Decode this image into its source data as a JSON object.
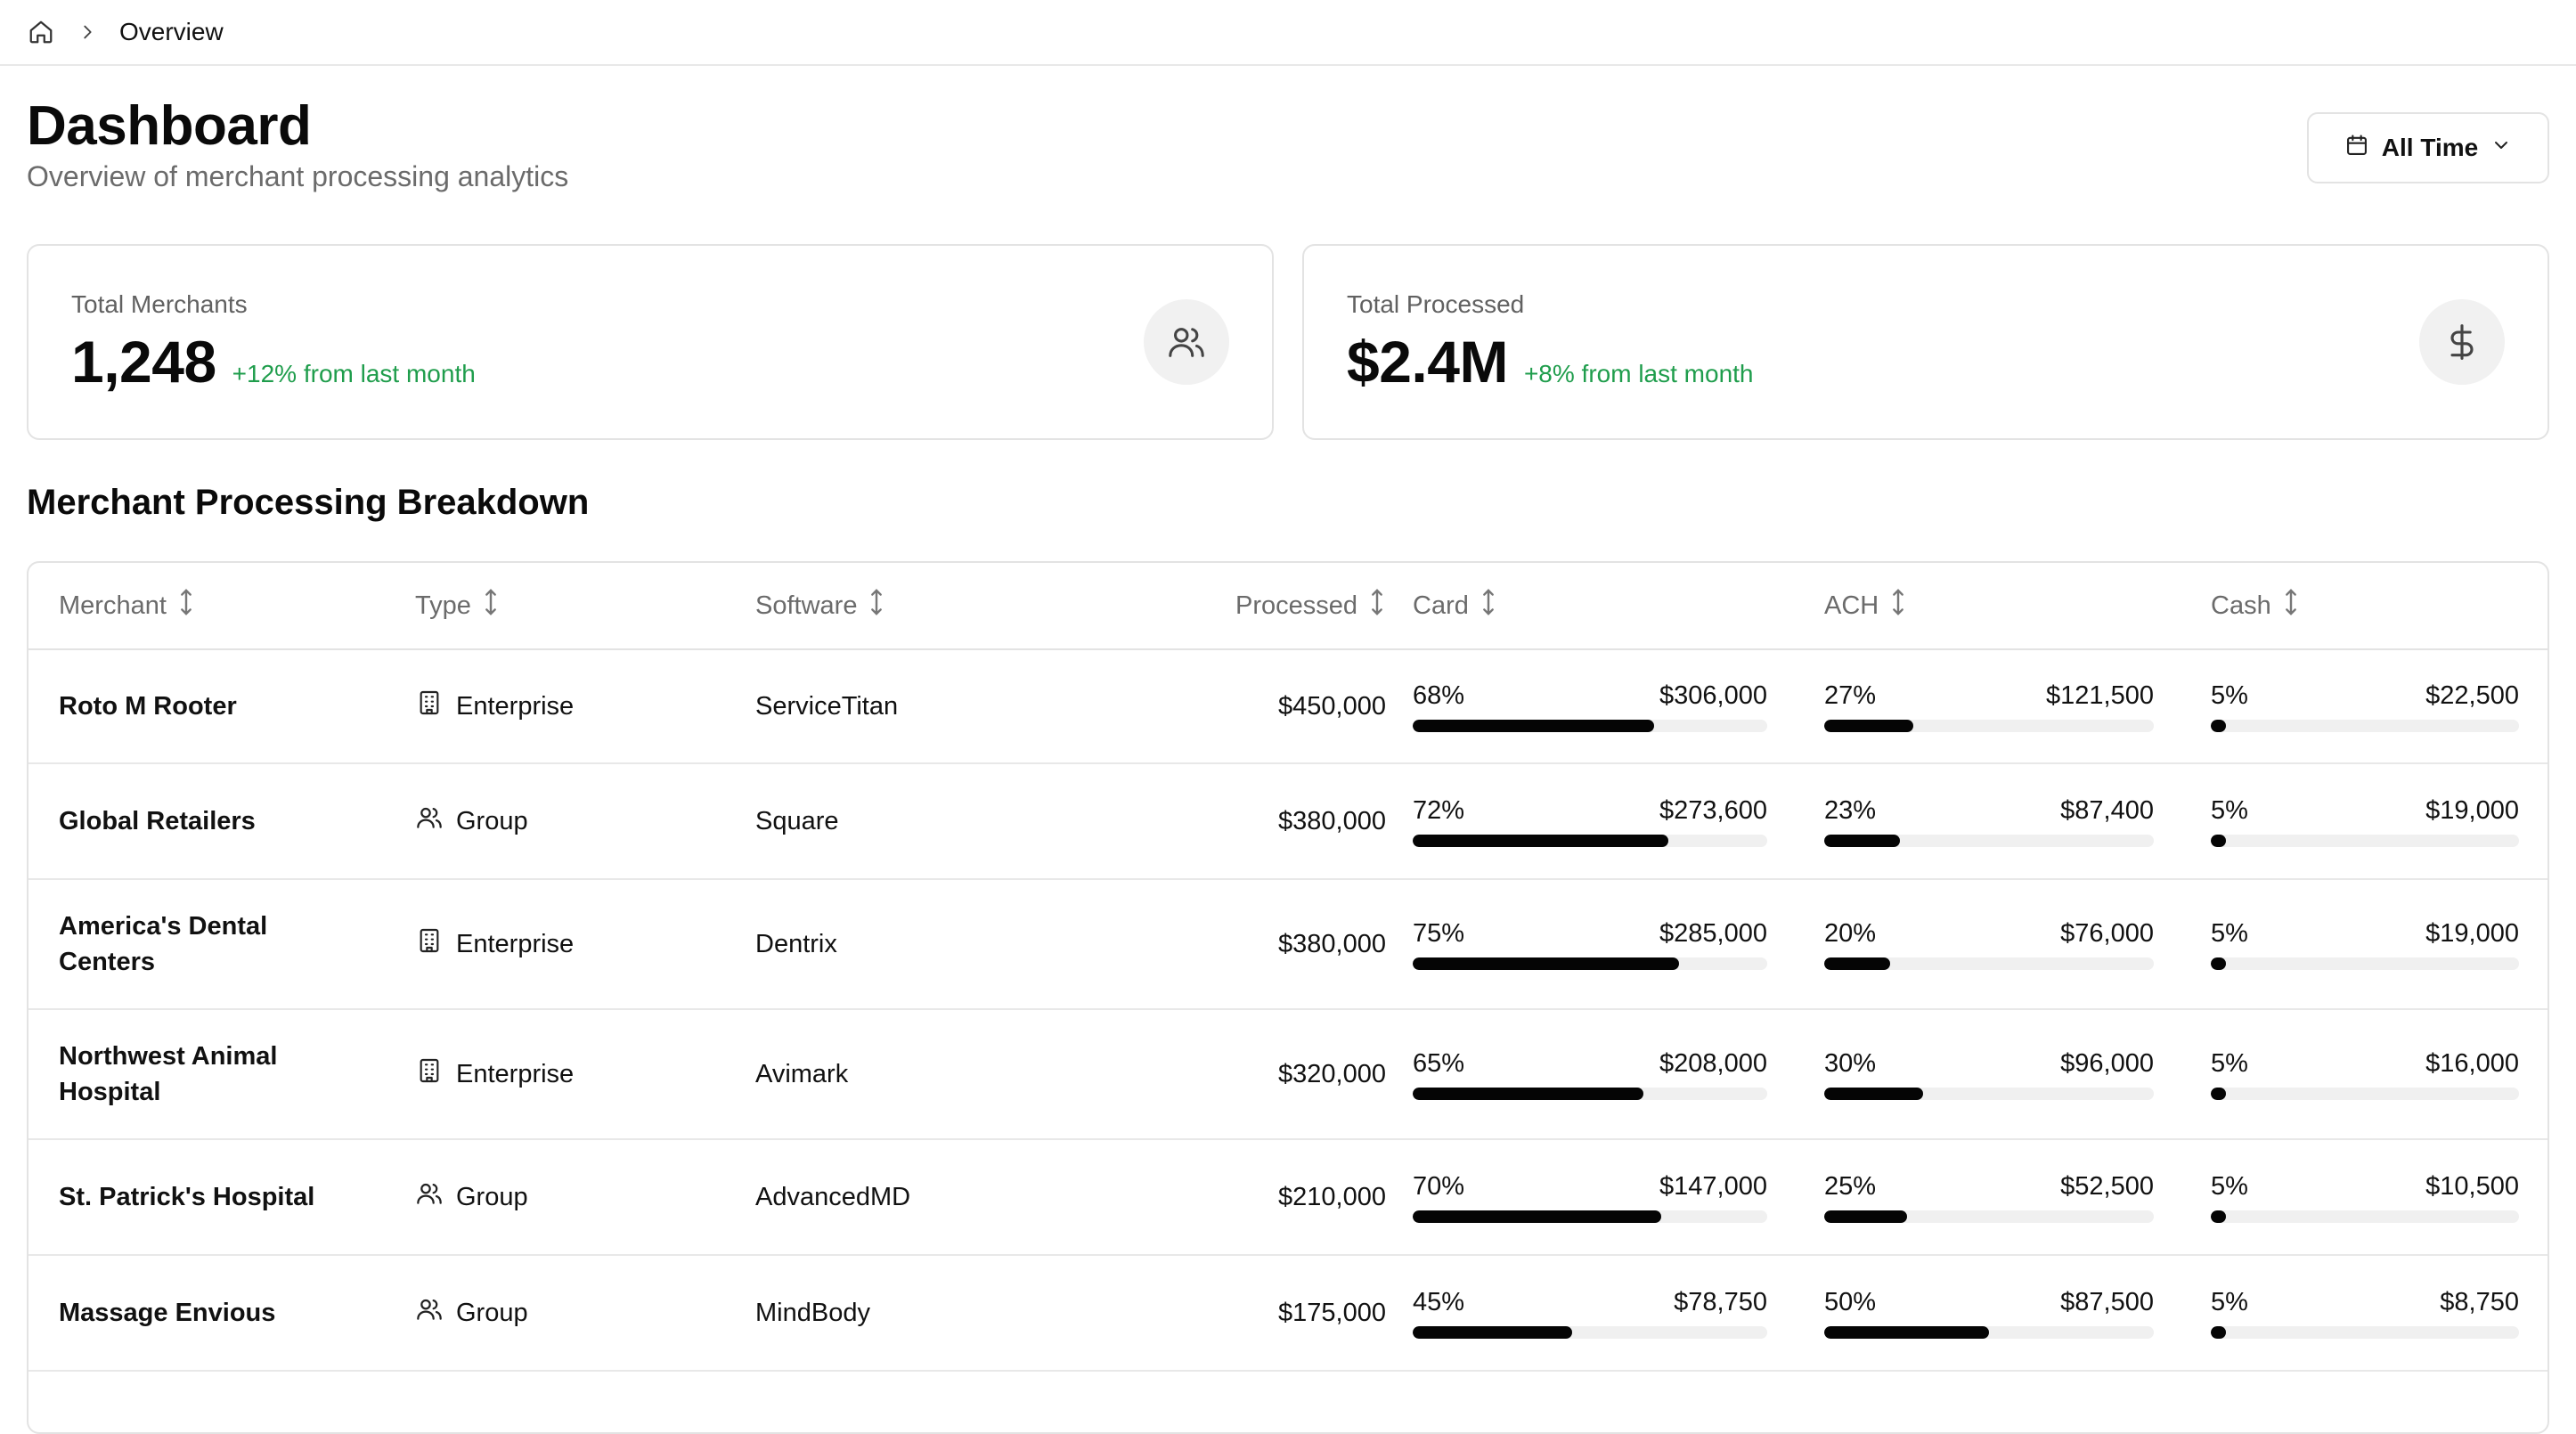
{
  "breadcrumb": {
    "current": "Overview"
  },
  "header": {
    "title": "Dashboard",
    "subtitle": "Overview of merchant processing analytics",
    "range_label": "All Time"
  },
  "stats": [
    {
      "label": "Total Merchants",
      "value": "1,248",
      "delta": "+12% from last month",
      "icon": "users-icon"
    },
    {
      "label": "Total Processed",
      "value": "$2.4M",
      "delta": "+8% from last month",
      "icon": "dollar-icon"
    }
  ],
  "section_title": "Merchant Processing Breakdown",
  "table": {
    "columns": [
      "Merchant",
      "Type",
      "Software",
      "Processed",
      "Card",
      "ACH",
      "Cash"
    ],
    "rows": [
      {
        "merchant": "Roto M Rooter",
        "type": "Enterprise",
        "type_icon": "building-icon",
        "software": "ServiceTitan",
        "processed": "$450,000",
        "card_pct": "68%",
        "card_amt": "$306,000",
        "card_frac": 0.68,
        "ach_pct": "27%",
        "ach_amt": "$121,500",
        "ach_frac": 0.27,
        "cash_pct": "5%",
        "cash_amt": "$22,500",
        "cash_frac": 0.05
      },
      {
        "merchant": "Global Retailers",
        "type": "Group",
        "type_icon": "users-icon",
        "software": "Square",
        "processed": "$380,000",
        "card_pct": "72%",
        "card_amt": "$273,600",
        "card_frac": 0.72,
        "ach_pct": "23%",
        "ach_amt": "$87,400",
        "ach_frac": 0.23,
        "cash_pct": "5%",
        "cash_amt": "$19,000",
        "cash_frac": 0.05
      },
      {
        "merchant": "America's Dental Centers",
        "type": "Enterprise",
        "type_icon": "building-icon",
        "software": "Dentrix",
        "processed": "$380,000",
        "card_pct": "75%",
        "card_amt": "$285,000",
        "card_frac": 0.75,
        "ach_pct": "20%",
        "ach_amt": "$76,000",
        "ach_frac": 0.2,
        "cash_pct": "5%",
        "cash_amt": "$19,000",
        "cash_frac": 0.05
      },
      {
        "merchant": "Northwest Animal Hospital",
        "type": "Enterprise",
        "type_icon": "building-icon",
        "software": "Avimark",
        "processed": "$320,000",
        "card_pct": "65%",
        "card_amt": "$208,000",
        "card_frac": 0.65,
        "ach_pct": "30%",
        "ach_amt": "$96,000",
        "ach_frac": 0.3,
        "cash_pct": "5%",
        "cash_amt": "$16,000",
        "cash_frac": 0.05
      },
      {
        "merchant": "St. Patrick's Hospital",
        "type": "Group",
        "type_icon": "users-icon",
        "software": "AdvancedMD",
        "processed": "$210,000",
        "card_pct": "70%",
        "card_amt": "$147,000",
        "card_frac": 0.7,
        "ach_pct": "25%",
        "ach_amt": "$52,500",
        "ach_frac": 0.25,
        "cash_pct": "5%",
        "cash_amt": "$10,500",
        "cash_frac": 0.05
      },
      {
        "merchant": "Massage Envious",
        "type": "Group",
        "type_icon": "users-icon",
        "software": "MindBody",
        "processed": "$175,000",
        "card_pct": "45%",
        "card_amt": "$78,750",
        "card_frac": 0.45,
        "ach_pct": "50%",
        "ach_amt": "$87,500",
        "ach_frac": 0.5,
        "cash_pct": "5%",
        "cash_amt": "$8,750",
        "cash_frac": 0.05
      }
    ]
  },
  "colors": {
    "accent_green": "#1f9d4c",
    "bar_fill": "#050505",
    "bar_track": "#f0f0f0",
    "border": "#e3e3e3"
  }
}
